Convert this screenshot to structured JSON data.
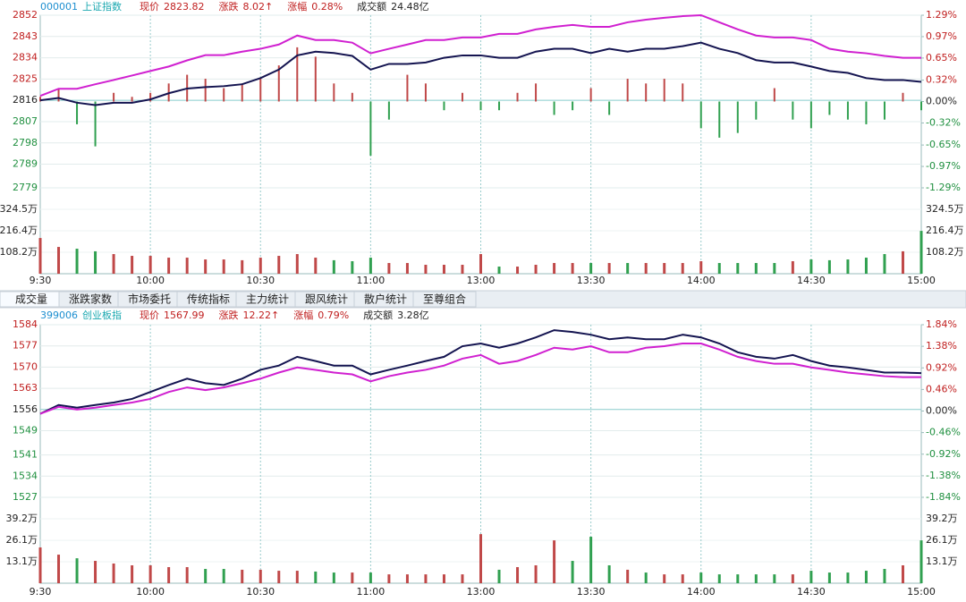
{
  "chart_data": [
    {
      "type": "line",
      "code": "000001",
      "name": "上证指数",
      "info": [
        {
          "label": "现价",
          "value": "2823.82"
        },
        {
          "label": "涨跌",
          "value": "8.02↑"
        },
        {
          "label": "涨幅",
          "value": "0.28%"
        },
        {
          "label": "成交额",
          "value": "24.48亿"
        }
      ],
      "categories": [
        "9:30",
        null,
        null,
        null,
        null,
        null,
        "10:00",
        null,
        null,
        null,
        null,
        null,
        "10:30",
        null,
        null,
        null,
        null,
        null,
        "11:00",
        null,
        null,
        null,
        null,
        null,
        "13:00",
        null,
        null,
        null,
        null,
        null,
        "13:30",
        null,
        null,
        null,
        null,
        null,
        "14:00",
        null,
        null,
        null,
        null,
        null,
        "14:30",
        null,
        null,
        null,
        null,
        null,
        "15:00"
      ],
      "ylim": [
        2779,
        2852
      ],
      "yticks": [
        2852,
        2843,
        2834,
        2825,
        2816,
        2807,
        2798,
        2789,
        2779
      ],
      "y2lim": [
        -1.29,
        1.29
      ],
      "y2ticks": [
        {
          "value": 1.29,
          "label": "1.29%"
        },
        {
          "value": 0.97,
          "label": "0.97%"
        },
        {
          "value": 0.65,
          "label": "0.65%"
        },
        {
          "value": 0.32,
          "label": "0.32%"
        },
        {
          "value": 0,
          "label": "0.00%"
        },
        {
          "value": -0.32,
          "label": "-0.32%"
        },
        {
          "value": -0.65,
          "label": "-0.65%"
        },
        {
          "value": -0.97,
          "label": "-0.97%"
        },
        {
          "value": -1.29,
          "label": "-1.29%"
        }
      ],
      "series": [
        {
          "color": "#141450",
          "values": [
            2816,
            2817,
            2815,
            2814,
            2815,
            2815,
            2816.4,
            2819,
            2821,
            2821.6,
            2822,
            2822.8,
            2825.4,
            2829,
            2835,
            2836.6,
            2836,
            2834.8,
            2829,
            2831.4,
            2831.4,
            2832,
            2834,
            2835,
            2835,
            2834,
            2834,
            2836.6,
            2837.8,
            2837.8,
            2836,
            2837.8,
            2836.6,
            2837.8,
            2837.8,
            2838.9,
            2840.4,
            2837.8,
            2836,
            2833,
            2832,
            2832,
            2830.3,
            2828.4,
            2827.6,
            2825.4,
            2824.6,
            2824.6,
            2823.8
          ]
        },
        {
          "color": "#d020d0",
          "values": [
            2817.9,
            2820.9,
            2820.9,
            2822.8,
            2824.6,
            2826.5,
            2828.4,
            2830.3,
            2832.9,
            2835.1,
            2835.1,
            2836.6,
            2837.8,
            2839.6,
            2843.4,
            2841.5,
            2841.5,
            2840.4,
            2835.9,
            2837.8,
            2839.6,
            2841.5,
            2841.5,
            2842.6,
            2842.6,
            2844.1,
            2844.1,
            2846,
            2847.1,
            2847.9,
            2847.1,
            2847.1,
            2849,
            2850.1,
            2850.9,
            2851.6,
            2852,
            2849,
            2846,
            2843.4,
            2842.6,
            2842.6,
            2841.5,
            2837.8,
            2836.6,
            2835.9,
            2834.8,
            2834,
            2834
          ]
        },
        {
          "type": "bar",
          "axis": "y2",
          "colors": [
            "#c04848",
            "#30a050"
          ],
          "values": [
            0.07,
            0.2,
            -0.34,
            -0.67,
            0.13,
            0.07,
            0.13,
            0.27,
            0.4,
            0.34,
            0.2,
            0.27,
            0.34,
            0.54,
            0.81,
            0.67,
            0.27,
            0.13,
            -0.81,
            -0.27,
            0.4,
            0.27,
            -0.13,
            0.13,
            -0.13,
            -0.13,
            0.13,
            0.27,
            -0.2,
            -0.13,
            0.2,
            -0.2,
            0.34,
            0.27,
            0.34,
            0.27,
            -0.4,
            -0.54,
            -0.47,
            -0.27,
            0.2,
            -0.27,
            -0.4,
            -0.2,
            -0.27,
            -0.34,
            -0.27,
            0.13,
            -0.13
          ]
        }
      ],
      "volume": {
        "ylim": [
          0,
          432.8
        ],
        "yticks": [
          {
            "value": 324.5,
            "label": "324.5万"
          },
          {
            "value": 216.4,
            "label": "216.4万"
          },
          {
            "value": 108.2,
            "label": "108.2万"
          }
        ],
        "colors": [
          "#c04848",
          "#30a050"
        ],
        "values": [
          180,
          135,
          126,
          113,
          99,
          90,
          90,
          81,
          81,
          72,
          72,
          68,
          81,
          90,
          99,
          81,
          68,
          63,
          81,
          54,
          54,
          45,
          45,
          45,
          99,
          36,
          36,
          45,
          54,
          54,
          54,
          54,
          54,
          54,
          54,
          54,
          63,
          54,
          54,
          54,
          54,
          63,
          72,
          68,
          72,
          81,
          99,
          113,
          216
        ]
      }
    },
    {
      "type": "line",
      "code": "399006",
      "name": "创业板指",
      "info": [
        {
          "label": "现价",
          "value": "1567.99"
        },
        {
          "label": "涨跌",
          "value": "12.22↑"
        },
        {
          "label": "涨幅",
          "value": "0.79%"
        },
        {
          "label": "成交额",
          "value": "3.28亿"
        }
      ],
      "categories": [
        "9:30",
        null,
        null,
        null,
        null,
        null,
        "10:00",
        null,
        null,
        null,
        null,
        null,
        "10:30",
        null,
        null,
        null,
        null,
        null,
        "11:00",
        null,
        null,
        null,
        null,
        null,
        "13:00",
        null,
        null,
        null,
        null,
        null,
        "13:30",
        null,
        null,
        null,
        null,
        null,
        "14:00",
        null,
        null,
        null,
        null,
        null,
        "14:30",
        null,
        null,
        null,
        null,
        null,
        "15:00"
      ],
      "ylim": [
        1527,
        1584
      ],
      "yticks": [
        1584,
        1577,
        1570,
        1563,
        1556,
        1549,
        1541,
        1534,
        1527
      ],
      "y2lim": [
        -1.84,
        1.84
      ],
      "y2ticks": [
        {
          "value": 1.84,
          "label": "1.84%"
        },
        {
          "value": 1.38,
          "label": "1.38%"
        },
        {
          "value": 0.92,
          "label": "0.92%"
        },
        {
          "value": 0.46,
          "label": "0.46%"
        },
        {
          "value": 0,
          "label": "0.00%"
        },
        {
          "value": -0.46,
          "label": "-0.46%"
        },
        {
          "value": -0.92,
          "label": "-0.92%"
        },
        {
          "value": -1.38,
          "label": "-1.38%"
        },
        {
          "value": -1.84,
          "label": "-1.84%"
        }
      ],
      "series": [
        {
          "color": "#141450",
          "values": [
            1554.6,
            1557.5,
            1556.6,
            1557.5,
            1558.3,
            1559.5,
            1561.8,
            1564.1,
            1566.2,
            1564.7,
            1564.1,
            1566.2,
            1569.1,
            1570.5,
            1573.4,
            1572,
            1570.5,
            1570.5,
            1567.6,
            1569.1,
            1570.5,
            1572,
            1573.4,
            1576.9,
            1577.8,
            1576.4,
            1577.8,
            1579.8,
            1582.2,
            1581.6,
            1580.7,
            1579.2,
            1579.8,
            1579.2,
            1579.2,
            1580.7,
            1579.8,
            1577.8,
            1574.9,
            1573.4,
            1572.8,
            1574,
            1572,
            1570.5,
            1569.9,
            1569.1,
            1568.2,
            1568.2,
            1568
          ]
        },
        {
          "color": "#d020d0",
          "values": [
            1554.6,
            1556.9,
            1556,
            1556.6,
            1557.5,
            1558.3,
            1559.5,
            1561.8,
            1563.3,
            1562.4,
            1563.3,
            1564.7,
            1566.2,
            1568.2,
            1569.9,
            1569.1,
            1568.2,
            1567.6,
            1565.3,
            1567,
            1568.2,
            1569.1,
            1570.5,
            1572.8,
            1574,
            1571.1,
            1572,
            1574,
            1576.4,
            1575.8,
            1576.9,
            1574.9,
            1574.9,
            1576.4,
            1576.9,
            1577.8,
            1577.8,
            1575.8,
            1573.4,
            1572,
            1571.1,
            1571.1,
            1569.9,
            1569.1,
            1568.2,
            1567.6,
            1567,
            1566.7,
            1566.7
          ]
        }
      ],
      "volume": {
        "ylim": [
          0,
          52.3
        ],
        "yticks": [
          {
            "value": 39.2,
            "label": "39.2万"
          },
          {
            "value": 26.1,
            "label": "26.1万"
          },
          {
            "value": 13.1,
            "label": "13.1万"
          }
        ],
        "colors": [
          "#c04848",
          "#30a050"
        ],
        "values": [
          21.8,
          17.4,
          15.2,
          13.6,
          12,
          10.9,
          10.9,
          9.8,
          9.8,
          8.7,
          8.7,
          8.2,
          8.2,
          7.6,
          7.6,
          7.1,
          6.5,
          6.5,
          6.5,
          5.4,
          5.4,
          5.4,
          5.4,
          5.4,
          29.9,
          8.2,
          9.8,
          10.9,
          26.1,
          13.6,
          28.3,
          10.9,
          8.2,
          6.5,
          5.4,
          5.4,
          6.5,
          5.4,
          5.4,
          5.4,
          5.4,
          5.4,
          7.6,
          6.5,
          6.5,
          7.6,
          8.7,
          10.9,
          26.1
        ]
      }
    }
  ],
  "tabs": [
    "成交量",
    "涨跌家数",
    "市场委托",
    "传统指标",
    "主力统计",
    "跟风统计",
    "散户统计",
    "至尊组合"
  ]
}
